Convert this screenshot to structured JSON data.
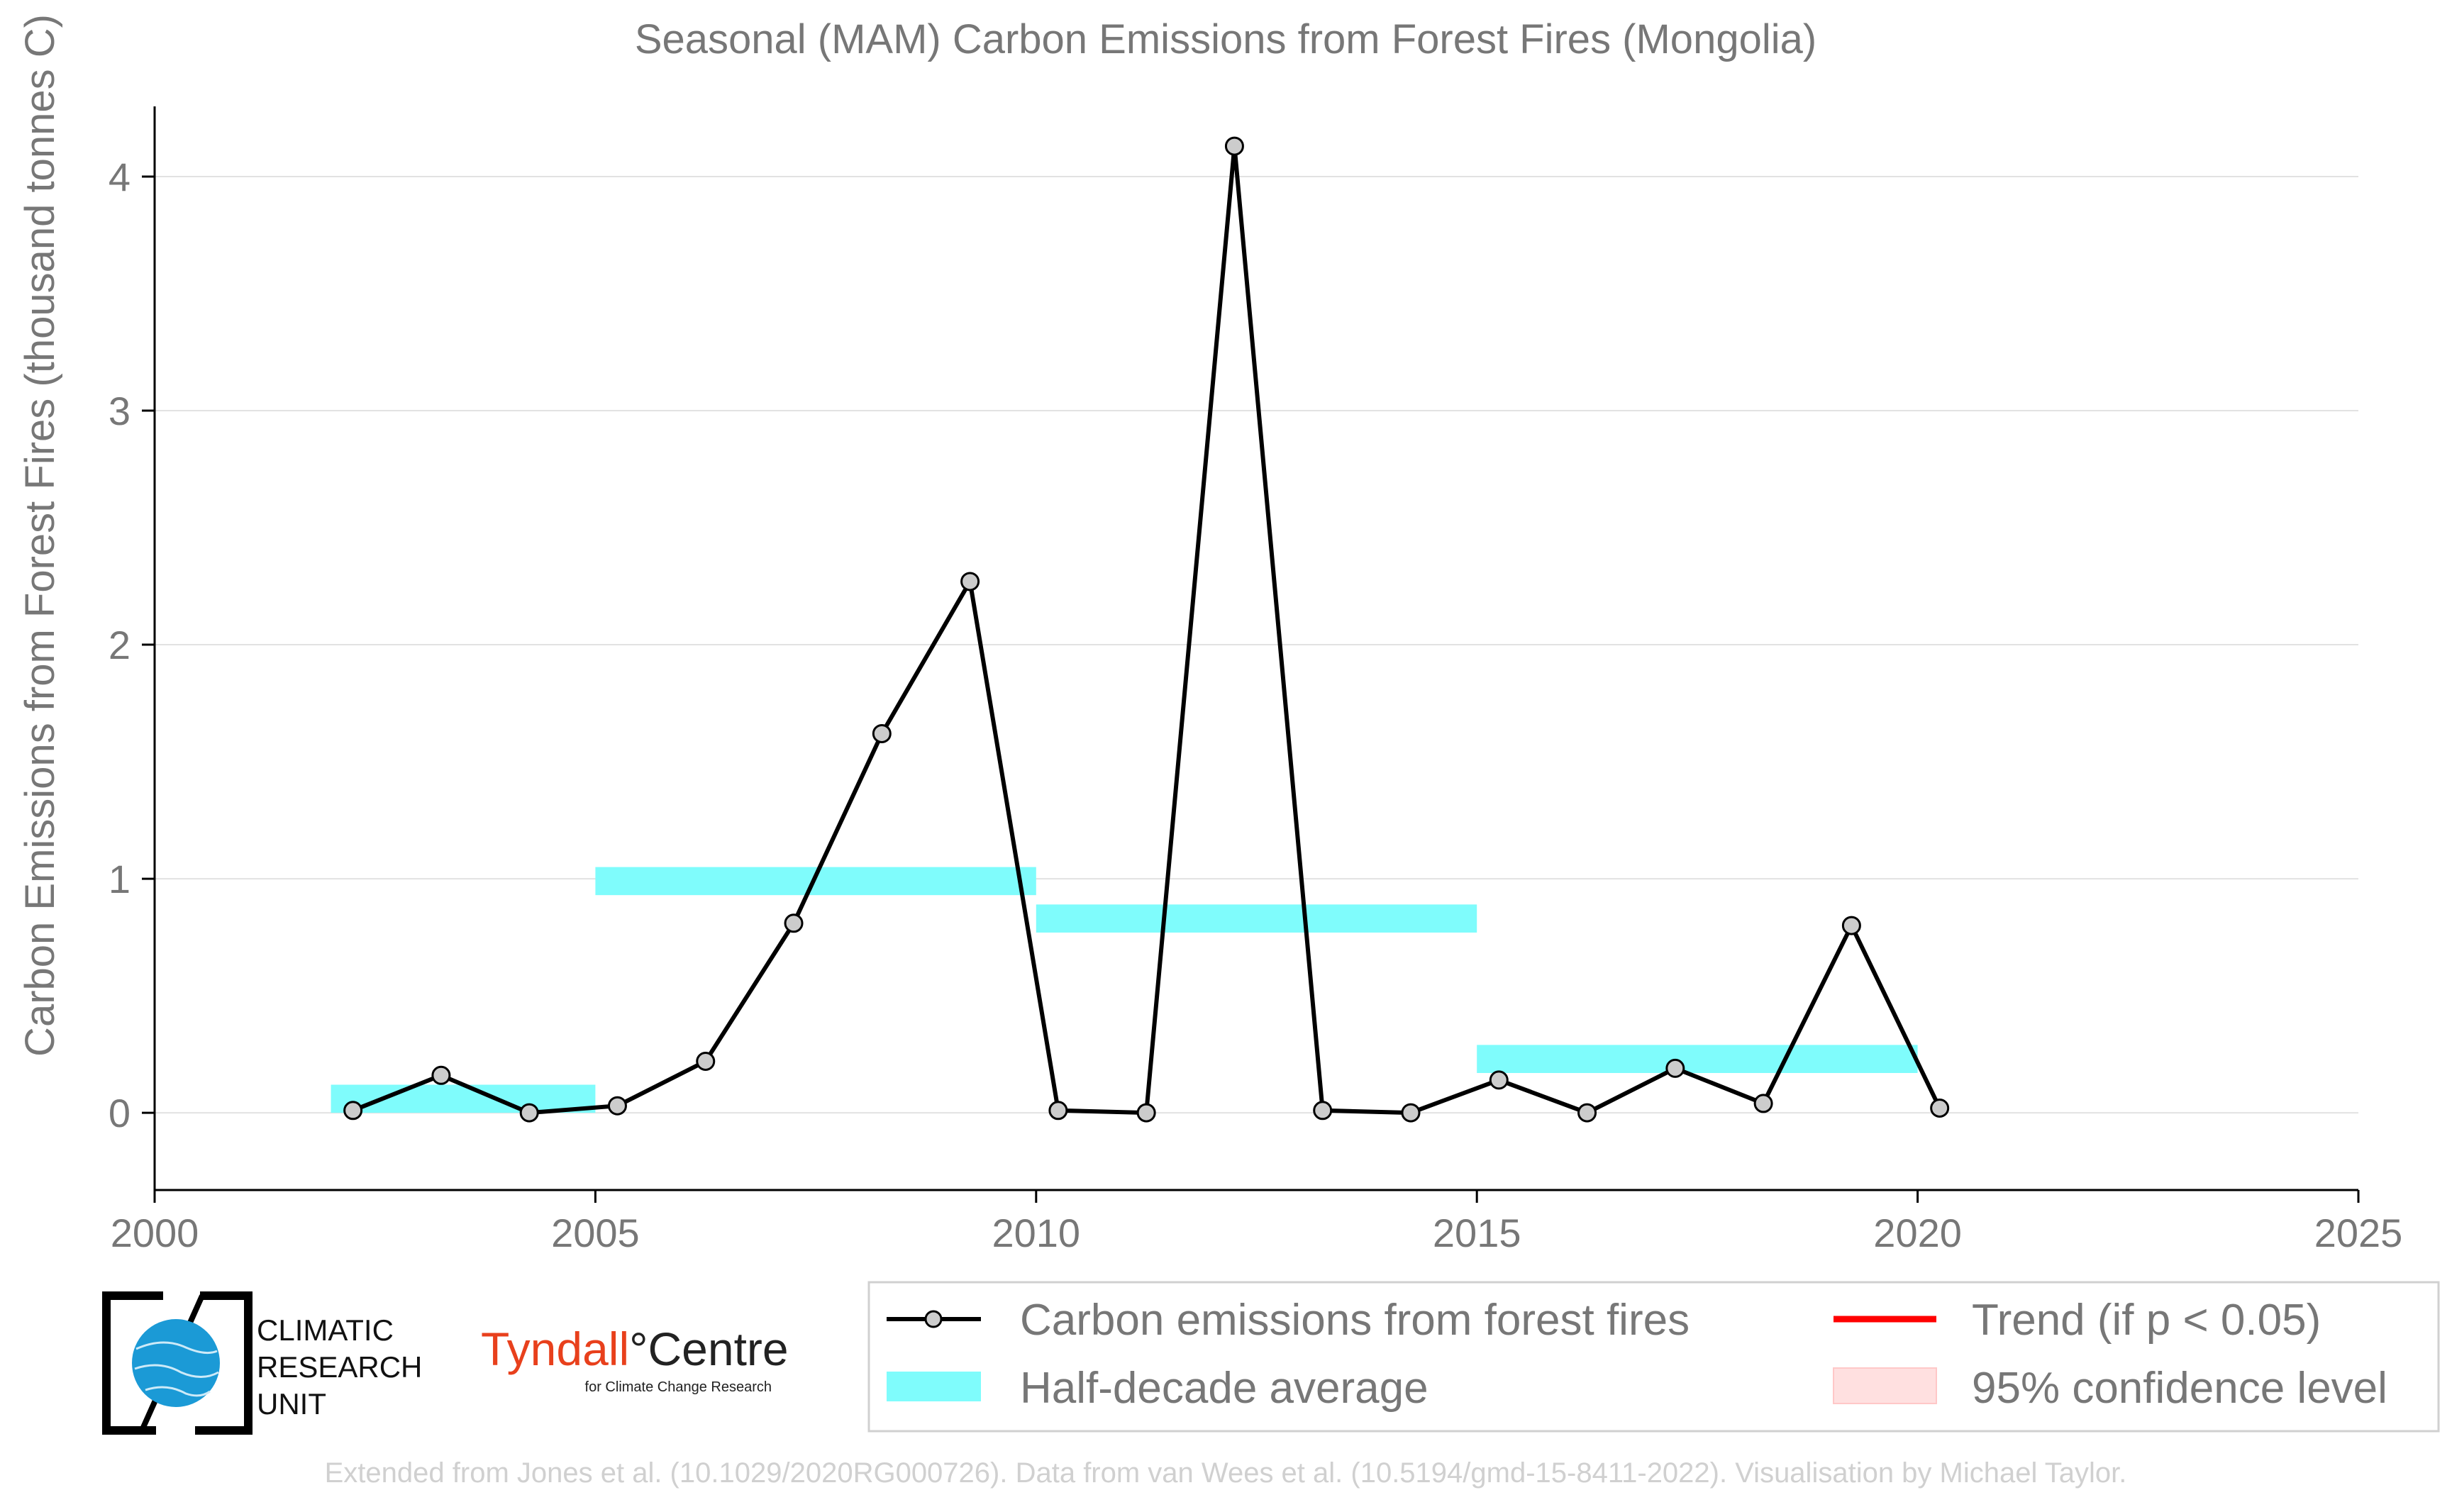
{
  "chart_data": {
    "type": "line",
    "title": "Seasonal (MAM) Carbon Emissions from Forest Fires (Mongolia)",
    "xlabel": "",
    "ylabel": "Carbon Emissions from Forest Fires (thousand tonnes C)",
    "xlim": [
      2000,
      2025
    ],
    "ylim": [
      -0.33,
      4.3
    ],
    "xticks": [
      2000,
      2005,
      2010,
      2015,
      2020,
      2025
    ],
    "yticks": [
      0,
      1,
      2,
      3,
      4
    ],
    "grid": "horizontal",
    "series": [
      {
        "name": "Carbon emissions from forest fires",
        "color": "#000000",
        "marker_fill": "#cccccc",
        "x": [
          2002.25,
          2003.25,
          2004.25,
          2005.25,
          2006.25,
          2007.25,
          2008.25,
          2009.25,
          2010.25,
          2011.25,
          2012.25,
          2013.25,
          2014.25,
          2015.25,
          2016.25,
          2017.25,
          2018.25,
          2019.25,
          2020.25
        ],
        "values": [
          0.01,
          0.16,
          0.0,
          0.03,
          0.22,
          0.81,
          1.62,
          2.27,
          0.01,
          0.0,
          4.13,
          0.01,
          0.0,
          0.14,
          0.0,
          0.19,
          0.04,
          0.8,
          0.02
        ]
      }
    ],
    "half_decade_average": {
      "name": "Half-decade average",
      "color": "#7ffcfc",
      "periods": [
        {
          "x0": 2002,
          "x1": 2005,
          "value": 0.06
        },
        {
          "x0": 2005,
          "x1": 2010,
          "value": 0.99
        },
        {
          "x0": 2010,
          "x1": 2015,
          "value": 0.83
        },
        {
          "x0": 2015,
          "x1": 2020,
          "value": 0.23
        }
      ]
    },
    "legend": {
      "placement": "bottom-right",
      "entries": [
        {
          "label": "Carbon emissions from forest fires",
          "kind": "line-marker",
          "color": "#000000"
        },
        {
          "label": "Trend (if p < 0.05)",
          "kind": "line",
          "color": "#ff0000"
        },
        {
          "label": "Half-decade average",
          "kind": "patch",
          "color": "#7ffcfc"
        },
        {
          "label": "95% confidence level",
          "kind": "patch",
          "color": "#ffe0e0"
        }
      ]
    }
  },
  "logos": {
    "cru_lines": [
      "CLIMATIC",
      "RESEARCH",
      "UNIT"
    ],
    "tyndall_part1": "Tyndall",
    "tyndall_part2": "°Centre",
    "tyndall_sub": "for Climate Change Research"
  },
  "credit": "Extended from Jones et al. (10.1029/2020RG000726). Data from van Wees et al. (10.5194/gmd-15-8411-2022). Visualisation by Michael Taylor."
}
